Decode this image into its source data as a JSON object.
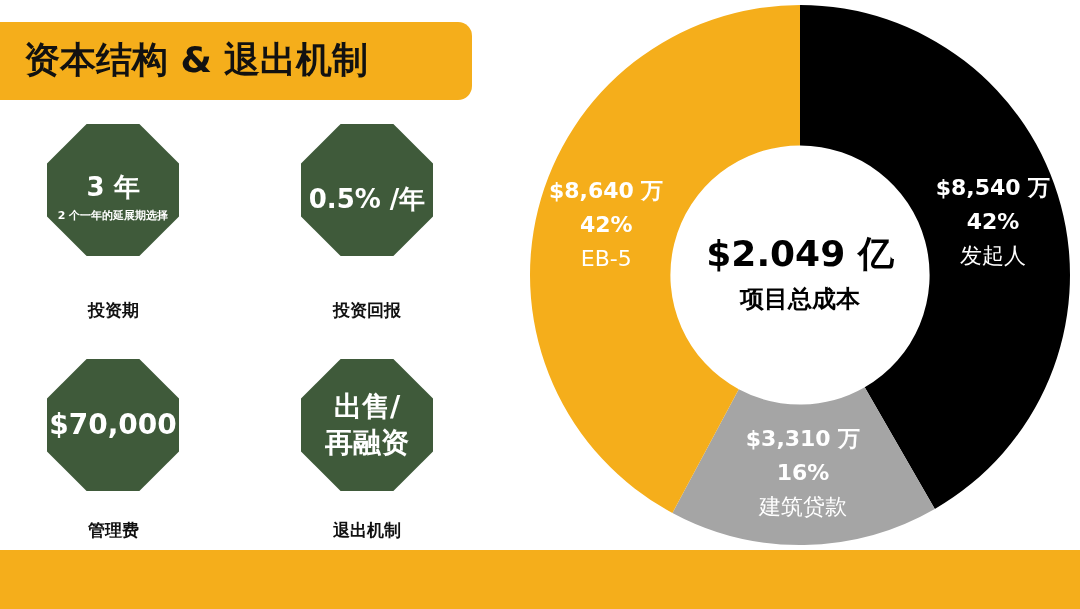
{
  "chart_data": [
    {
      "type": "other",
      "title": "资本结构 & 退出机制",
      "annotations": [
        "3 年",
        "2 个一年的延展期选择",
        "投资期",
        "0.5% /年",
        "投资回报",
        "$70,000",
        "管理费",
        "出售/\n再融资",
        "退出机制"
      ]
    },
    {
      "type": "donut",
      "categories": [
        "发起人",
        "建筑贷款",
        "EB-5"
      ],
      "values": [
        8540,
        3310,
        8640
      ],
      "colors": [
        "#000000",
        "#a5a5a5",
        "#f5ae1b"
      ],
      "value_labels": [
        "$8,540 万\n42%",
        "$3,310 万\n16%",
        "$8,640 万\n42%"
      ],
      "annotations": [
        "$2.049 亿",
        "项目总成本"
      ],
      "legend": false
    }
  ]
}
